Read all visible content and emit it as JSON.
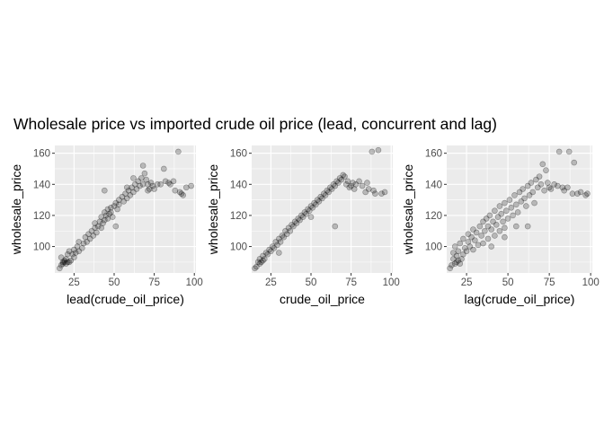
{
  "title": "Wholesale price vs imported crude oil price (lead, concurrent and lag)",
  "chart_data": [
    {
      "type": "scatter",
      "xlabel": "lead(crude_oil_price)",
      "ylabel": "wholesale_price",
      "xlim": [
        13,
        101
      ],
      "ylim": [
        83,
        165
      ],
      "xticks": [
        25,
        50,
        75,
        100
      ],
      "yticks": [
        100,
        120,
        140,
        160
      ],
      "grid": true,
      "point_color": "#000000",
      "point_opacity": 0.22,
      "series": [
        {
          "points": [
            [
              16,
              86
            ],
            [
              17,
              88
            ],
            [
              17,
              93
            ],
            [
              18,
              89
            ],
            [
              18,
              90
            ],
            [
              19,
              90
            ],
            [
              19,
              91
            ],
            [
              20,
              89
            ],
            [
              20,
              92
            ],
            [
              21,
              90
            ],
            [
              21,
              95
            ],
            [
              22,
              90
            ],
            [
              22,
              97
            ],
            [
              23,
              91
            ],
            [
              24,
              95
            ],
            [
              25,
              93
            ],
            [
              25,
              98
            ],
            [
              26,
              96
            ],
            [
              27,
              100
            ],
            [
              28,
              97
            ],
            [
              28,
              103
            ],
            [
              30,
              99
            ],
            [
              31,
              102
            ],
            [
              32,
              106
            ],
            [
              33,
              103
            ],
            [
              34,
              108
            ],
            [
              35,
              105
            ],
            [
              36,
              110
            ],
            [
              37,
              107
            ],
            [
              38,
              112
            ],
            [
              38,
              115
            ],
            [
              39,
              109
            ],
            [
              40,
              113
            ],
            [
              41,
              116
            ],
            [
              42,
              112
            ],
            [
              42,
              119
            ],
            [
              43,
              115
            ],
            [
              44,
              117
            ],
            [
              44,
              122
            ],
            [
              45,
              120
            ],
            [
              46,
              118
            ],
            [
              46,
              124
            ],
            [
              47,
              121
            ],
            [
              48,
              125
            ],
            [
              48,
              122
            ],
            [
              49,
              119
            ],
            [
              50,
              126
            ],
            [
              51,
              128
            ],
            [
              52,
              124
            ],
            [
              53,
              130
            ],
            [
              53,
              127
            ],
            [
              55,
              132
            ],
            [
              56,
              129
            ],
            [
              57,
              134
            ],
            [
              58,
              131
            ],
            [
              59,
              136
            ],
            [
              60,
              133
            ],
            [
              61,
              138
            ],
            [
              62,
              135
            ],
            [
              63,
              140
            ],
            [
              64,
              137
            ],
            [
              65,
              142
            ],
            [
              66,
              139
            ],
            [
              67,
              144
            ],
            [
              68,
              140
            ],
            [
              69,
              147
            ],
            [
              70,
              143
            ],
            [
              71,
              140
            ],
            [
              72,
              137
            ],
            [
              73,
              141
            ],
            [
              74,
              139
            ],
            [
              75,
              137
            ],
            [
              77,
              140
            ],
            [
              79,
              140
            ],
            [
              81,
              150
            ],
            [
              82,
              142
            ],
            [
              84,
              141
            ],
            [
              85,
              140
            ],
            [
              87,
              142
            ],
            [
              88,
              136
            ],
            [
              90,
              161
            ],
            [
              91,
              135
            ],
            [
              92,
              134
            ],
            [
              93,
              133
            ],
            [
              95,
              138
            ],
            [
              98,
              139
            ],
            [
              44,
              136
            ],
            [
              51,
              113
            ],
            [
              62,
              144
            ],
            [
              68,
              152
            ],
            [
              58,
              138
            ],
            [
              71,
              136
            ]
          ]
        }
      ]
    },
    {
      "type": "scatter",
      "xlabel": "crude_oil_price",
      "ylabel": "wholesale_price",
      "xlim": [
        13,
        101
      ],
      "ylim": [
        83,
        165
      ],
      "xticks": [
        25,
        50,
        75,
        100
      ],
      "yticks": [
        100,
        120,
        140,
        160
      ],
      "grid": true,
      "point_color": "#000000",
      "point_opacity": 0.22,
      "series": [
        {
          "points": [
            [
              15,
              86
            ],
            [
              16,
              87
            ],
            [
              17,
              90
            ],
            [
              18,
              89
            ],
            [
              18,
              92
            ],
            [
              19,
              90
            ],
            [
              20,
              91
            ],
            [
              20,
              94
            ],
            [
              21,
              92
            ],
            [
              22,
              96
            ],
            [
              23,
              95
            ],
            [
              24,
              98
            ],
            [
              25,
              97
            ],
            [
              26,
              100
            ],
            [
              27,
              99
            ],
            [
              28,
              103
            ],
            [
              29,
              101
            ],
            [
              30,
              105
            ],
            [
              31,
              103
            ],
            [
              32,
              107
            ],
            [
              33,
              106
            ],
            [
              34,
              110
            ],
            [
              35,
              108
            ],
            [
              36,
              112
            ],
            [
              37,
              110
            ],
            [
              38,
              114
            ],
            [
              39,
              113
            ],
            [
              40,
              116
            ],
            [
              41,
              115
            ],
            [
              42,
              118
            ],
            [
              43,
              117
            ],
            [
              44,
              120
            ],
            [
              45,
              119
            ],
            [
              46,
              122
            ],
            [
              47,
              121
            ],
            [
              48,
              124
            ],
            [
              49,
              123
            ],
            [
              50,
              126
            ],
            [
              51,
              125
            ],
            [
              52,
              128
            ],
            [
              53,
              127
            ],
            [
              54,
              130
            ],
            [
              55,
              129
            ],
            [
              56,
              132
            ],
            [
              57,
              131
            ],
            [
              58,
              134
            ],
            [
              59,
              133
            ],
            [
              60,
              136
            ],
            [
              61,
              135
            ],
            [
              62,
              138
            ],
            [
              63,
              137
            ],
            [
              64,
              140
            ],
            [
              65,
              139
            ],
            [
              66,
              142
            ],
            [
              67,
              141
            ],
            [
              68,
              144
            ],
            [
              69,
              143
            ],
            [
              70,
              146
            ],
            [
              71,
              145
            ],
            [
              72,
              140
            ],
            [
              73,
              142
            ],
            [
              74,
              138
            ],
            [
              75,
              139
            ],
            [
              76,
              141
            ],
            [
              77,
              137
            ],
            [
              78,
              140
            ],
            [
              80,
              142
            ],
            [
              82,
              139
            ],
            [
              84,
              135
            ],
            [
              85,
              141
            ],
            [
              86,
              137
            ],
            [
              88,
              161
            ],
            [
              89,
              136
            ],
            [
              90,
              134
            ],
            [
              92,
              162
            ],
            [
              94,
              134
            ],
            [
              96,
              135
            ],
            [
              65,
              113
            ],
            [
              30,
              96
            ],
            [
              50,
              119
            ]
          ]
        }
      ]
    },
    {
      "type": "scatter",
      "xlabel": "lag(crude_oil_price)",
      "ylabel": "wholesale_price",
      "xlim": [
        13,
        101
      ],
      "ylim": [
        83,
        165
      ],
      "xticks": [
        25,
        50,
        75,
        100
      ],
      "yticks": [
        100,
        120,
        140,
        160
      ],
      "grid": true,
      "point_color": "#000000",
      "point_opacity": 0.22,
      "series": [
        {
          "points": [
            [
              15,
              86
            ],
            [
              16,
              88
            ],
            [
              17,
              92
            ],
            [
              17,
              96
            ],
            [
              18,
              89
            ],
            [
              18,
              100
            ],
            [
              19,
              90
            ],
            [
              19,
              94
            ],
            [
              20,
              91
            ],
            [
              20,
              97
            ],
            [
              21,
              89
            ],
            [
              21,
              102
            ],
            [
              22,
              92
            ],
            [
              23,
              95
            ],
            [
              23,
              105
            ],
            [
              24,
              99
            ],
            [
              25,
              97
            ],
            [
              26,
              103
            ],
            [
              26,
              108
            ],
            [
              27,
              100
            ],
            [
              28,
              106
            ],
            [
              29,
              98
            ],
            [
              29,
              111
            ],
            [
              30,
              104
            ],
            [
              31,
              109
            ],
            [
              32,
              101
            ],
            [
              33,
              113
            ],
            [
              34,
              107
            ],
            [
              35,
              116
            ],
            [
              35,
              102
            ],
            [
              36,
              110
            ],
            [
              37,
              118
            ],
            [
              38,
              105
            ],
            [
              38,
              113
            ],
            [
              39,
              120
            ],
            [
              40,
              111
            ],
            [
              41,
              116
            ],
            [
              42,
              107
            ],
            [
              42,
              123
            ],
            [
              43,
              114
            ],
            [
              44,
              119
            ],
            [
              45,
              126
            ],
            [
              45,
              110
            ],
            [
              46,
              121
            ],
            [
              47,
              116
            ],
            [
              48,
              128
            ],
            [
              48,
              112
            ],
            [
              49,
              123
            ],
            [
              50,
              118
            ],
            [
              51,
              130
            ],
            [
              52,
              125
            ],
            [
              53,
              120
            ],
            [
              54,
              133
            ],
            [
              55,
              127
            ],
            [
              56,
              122
            ],
            [
              57,
              135
            ],
            [
              58,
              129
            ],
            [
              59,
              137
            ],
            [
              60,
              131
            ],
            [
              61,
              126
            ],
            [
              62,
              139
            ],
            [
              63,
              133
            ],
            [
              64,
              141
            ],
            [
              65,
              135
            ],
            [
              66,
              128
            ],
            [
              67,
              143
            ],
            [
              68,
              138
            ],
            [
              69,
              145
            ],
            [
              70,
              140
            ],
            [
              71,
              153
            ],
            [
              72,
              136
            ],
            [
              73,
              149
            ],
            [
              74,
              141
            ],
            [
              75,
              138
            ],
            [
              76,
              137
            ],
            [
              78,
              140
            ],
            [
              80,
              139
            ],
            [
              81,
              161
            ],
            [
              83,
              138
            ],
            [
              84,
              136
            ],
            [
              86,
              138
            ],
            [
              87,
              161
            ],
            [
              89,
              134
            ],
            [
              90,
              154
            ],
            [
              92,
              134
            ],
            [
              94,
              135
            ],
            [
              97,
              133
            ],
            [
              98,
              134
            ],
            [
              40,
              100
            ],
            [
              55,
              113
            ],
            [
              62,
              113
            ],
            [
              48,
              106
            ]
          ]
        }
      ]
    }
  ]
}
